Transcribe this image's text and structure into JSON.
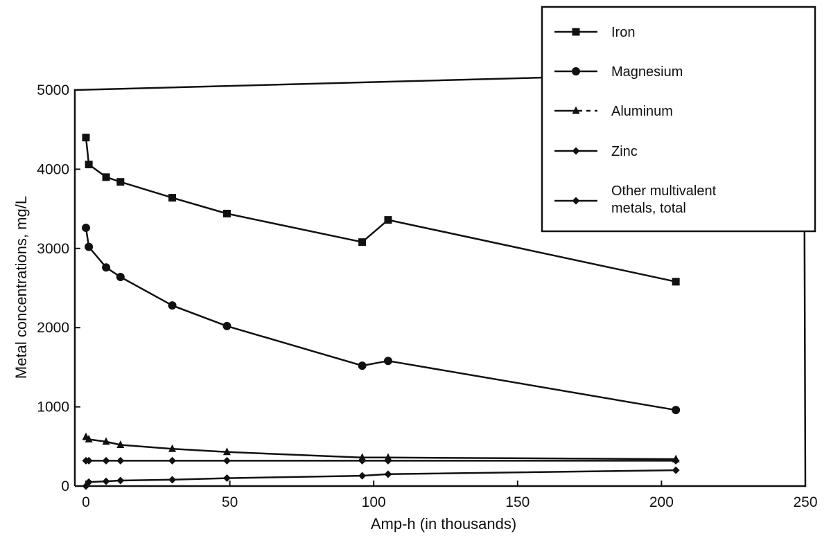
{
  "chart_data": {
    "type": "line",
    "xlabel": "Amp-h (in thousands)",
    "ylabel": "Metal concentrations, mg/L",
    "xlim": [
      0,
      250
    ],
    "ylim": [
      0,
      5000
    ],
    "xticks": [
      "0",
      "50",
      "100",
      "150",
      "200",
      "250"
    ],
    "yticks": [
      "0",
      "1000",
      "2000",
      "3000",
      "4000",
      "5000"
    ],
    "grid": false,
    "legend_position": "top-right",
    "series": [
      {
        "name": "Iron",
        "marker": "square",
        "x": [
          0,
          1,
          7,
          12,
          30,
          49,
          96,
          105,
          205
        ],
        "y": [
          4400,
          4060,
          3900,
          3840,
          3640,
          3440,
          3080,
          3360,
          2580
        ]
      },
      {
        "name": "Magnesium",
        "marker": "circle",
        "x": [
          0,
          1,
          7,
          12,
          30,
          49,
          96,
          105,
          205
        ],
        "y": [
          3260,
          3020,
          2760,
          2640,
          2280,
          2020,
          1520,
          1580,
          960
        ]
      },
      {
        "name": "Aluminum",
        "marker": "triangle",
        "x": [
          0,
          1,
          7,
          12,
          30,
          49,
          96,
          105,
          205
        ],
        "y": [
          620,
          590,
          560,
          520,
          470,
          430,
          360,
          360,
          340
        ]
      },
      {
        "name": "Zinc",
        "marker": "diamond",
        "x": [
          0,
          1,
          7,
          12,
          30,
          49,
          96,
          105,
          205
        ],
        "y": [
          320,
          320,
          320,
          320,
          320,
          320,
          320,
          320,
          320
        ]
      },
      {
        "name": "Other multivalent metals, total",
        "marker": "diamond",
        "x": [
          0,
          1,
          7,
          12,
          30,
          49,
          96,
          105,
          205
        ],
        "y": [
          0,
          50,
          60,
          70,
          80,
          100,
          130,
          150,
          200
        ]
      }
    ]
  }
}
